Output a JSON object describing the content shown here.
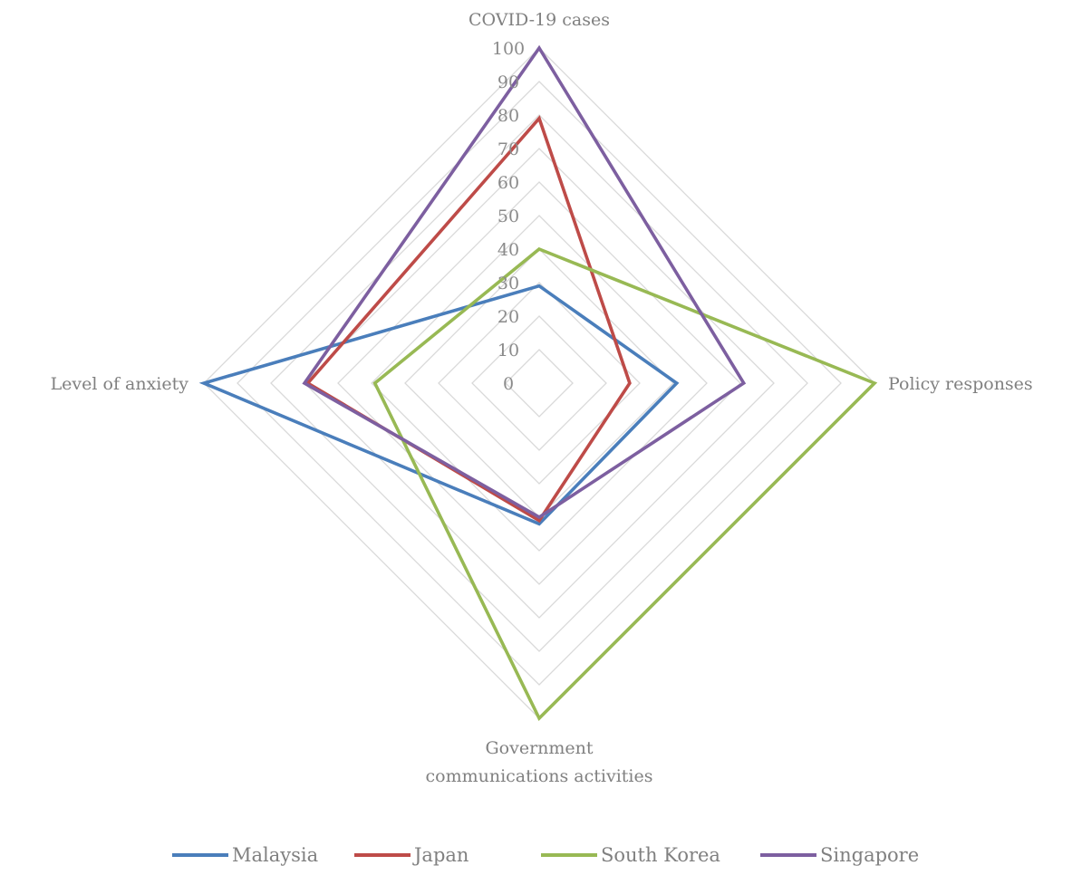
{
  "chart_data": {
    "type": "radar",
    "axes": [
      [
        "COVID-19 cases"
      ],
      [
        "Policy responses"
      ],
      [
        "Government",
        "communications activities"
      ],
      [
        "Level  of anxiety"
      ]
    ],
    "range": [
      0,
      100
    ],
    "ticks": [
      0,
      10,
      20,
      30,
      40,
      50,
      60,
      70,
      80,
      90,
      100
    ],
    "grid": true,
    "legend_position": "bottom",
    "series": [
      {
        "name": "Malaysia",
        "color": "#4a7ebb",
        "values": [
          29,
          41,
          42,
          100
        ]
      },
      {
        "name": "Japan",
        "color": "#be4b48",
        "values": [
          79,
          27,
          41,
          69
        ]
      },
      {
        "name": "South Korea",
        "color": "#98b954",
        "values": [
          40,
          100,
          100,
          49
        ]
      },
      {
        "name": "Singapore",
        "color": "#7d5fa0",
        "values": [
          100,
          61,
          40,
          70
        ]
      }
    ]
  }
}
